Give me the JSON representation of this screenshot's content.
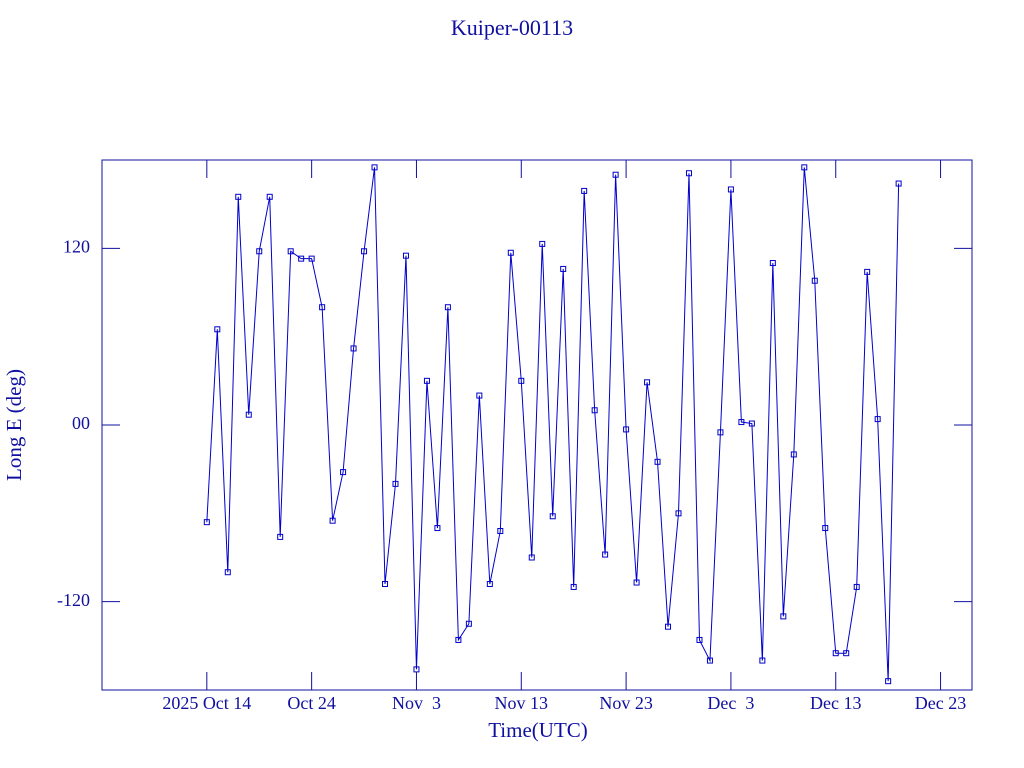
{
  "chart_data": {
    "type": "line",
    "title": "Kuiper-00113",
    "xlabel": "Time(UTC)",
    "ylabel": "Long E (deg)",
    "x": [
      "2025-10-14",
      "2025-10-15",
      "2025-10-16",
      "2025-10-17",
      "2025-10-18",
      "2025-10-19",
      "2025-10-20",
      "2025-10-21",
      "2025-10-22",
      "2025-10-23",
      "2025-10-24",
      "2025-10-25",
      "2025-10-26",
      "2025-10-27",
      "2025-10-28",
      "2025-10-29",
      "2025-10-30",
      "2025-10-31",
      "2025-11-01",
      "2025-11-02",
      "2025-11-03",
      "2025-11-04",
      "2025-11-05",
      "2025-11-06",
      "2025-11-07",
      "2025-11-08",
      "2025-11-09",
      "2025-11-10",
      "2025-11-11",
      "2025-11-12",
      "2025-11-13",
      "2025-11-14",
      "2025-11-15",
      "2025-11-16",
      "2025-11-17",
      "2025-11-18",
      "2025-11-19",
      "2025-11-20",
      "2025-11-21",
      "2025-11-22",
      "2025-11-23",
      "2025-11-24",
      "2025-11-25",
      "2025-11-26",
      "2025-11-27",
      "2025-11-28",
      "2025-11-29",
      "2025-11-30",
      "2025-12-01",
      "2025-12-02",
      "2025-12-03",
      "2025-12-04",
      "2025-12-05",
      "2025-12-06",
      "2025-12-07",
      "2025-12-08",
      "2025-12-09",
      "2025-12-10",
      "2025-12-11",
      "2025-12-12",
      "2025-12-13",
      "2025-12-14",
      "2025-12-15",
      "2025-12-16",
      "2025-12-17",
      "2025-12-18",
      "2025-12-19"
    ],
    "series": [
      {
        "name": "Kuiper-00113",
        "color": "#0000cc",
        "values": [
          -66,
          65,
          -100,
          155,
          7,
          118,
          155,
          -76,
          118,
          113,
          113,
          80,
          -65,
          -32,
          52,
          118,
          175,
          -108,
          -40,
          115,
          -166,
          30,
          -70,
          80,
          -146,
          -135,
          20,
          -108,
          -72,
          117,
          30,
          -90,
          123,
          -62,
          106,
          -110,
          159,
          10,
          -88,
          170,
          -3,
          -107,
          29,
          -25,
          -137,
          -60,
          171,
          -146,
          -160,
          -5,
          160,
          2,
          1,
          -160,
          110,
          -130,
          -20,
          175,
          98,
          -70,
          -155,
          -155,
          -110,
          104,
          4,
          -174,
          164
        ]
      }
    ],
    "xlim": [
      "2025-10-04",
      "2025-12-26"
    ],
    "xticks": [
      {
        "value": "2025-10-14",
        "label": "2025 Oct 14"
      },
      {
        "value": "2025-10-24",
        "label": "Oct 24"
      },
      {
        "value": "2025-11-03",
        "label": "Nov  3"
      },
      {
        "value": "2025-11-13",
        "label": "Nov 13"
      },
      {
        "value": "2025-11-23",
        "label": "Nov 23"
      },
      {
        "value": "2025-12-03",
        "label": "Dec  3"
      },
      {
        "value": "2025-12-13",
        "label": "Dec 13"
      },
      {
        "value": "2025-12-23",
        "label": "Dec 23"
      }
    ],
    "ylim": [
      -180,
      180
    ],
    "yticks": [
      -120,
      {
        "value": 0,
        "label": "00"
      },
      120
    ]
  }
}
